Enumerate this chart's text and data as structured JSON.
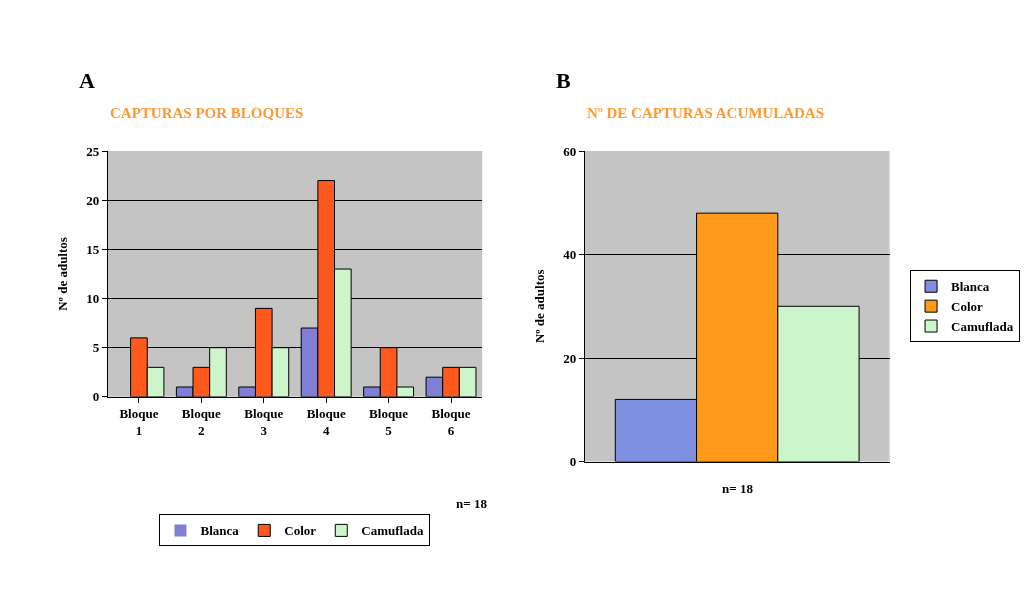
{
  "chart_data": [
    {
      "type": "bar",
      "title": "CAPTURAS POR BLOQUES",
      "ylabel": "Nº de adultos",
      "annotations": [
        "A",
        "n= 18"
      ],
      "categories": [
        "Bloque 1",
        "Bloque 2",
        "Bloque 3",
        "Bloque 4",
        "Bloque 5",
        "Bloque 6"
      ],
      "series": [
        {
          "name": "Blanca",
          "color": "#7f7fd6",
          "values": [
            0,
            1,
            1,
            7,
            1,
            2
          ]
        },
        {
          "name": "Color",
          "color": "#ff5a1e",
          "values": [
            6,
            3,
            9,
            22,
            5,
            3
          ]
        },
        {
          "name": "Camuflada",
          "color": "#ccf5cc",
          "values": [
            3,
            5,
            5,
            13,
            1,
            3
          ]
        }
      ],
      "ylim": [
        0,
        25
      ],
      "yticks": [
        0,
        5,
        10,
        15,
        20,
        25
      ],
      "grid": "y",
      "legend": "bottom"
    },
    {
      "type": "bar",
      "title": "Nº DE CAPTURAS ACUMULADAS",
      "ylabel": "Nº de adultos",
      "annotations": [
        "B",
        "n= 18"
      ],
      "categories": [
        null
      ],
      "series": [
        {
          "name": "Blanca",
          "color": "#7f8fe0",
          "values": [
            12
          ]
        },
        {
          "name": "Color",
          "color": "#ff9a1a",
          "values": [
            48
          ]
        },
        {
          "name": "Camuflada",
          "color": "#ccf5cc",
          "values": [
            30
          ]
        }
      ],
      "ylim": [
        0,
        60
      ],
      "yticks": [
        0,
        20,
        40,
        60
      ],
      "grid": "y",
      "legend": "right",
      "tick_labels": "y"
    }
  ]
}
